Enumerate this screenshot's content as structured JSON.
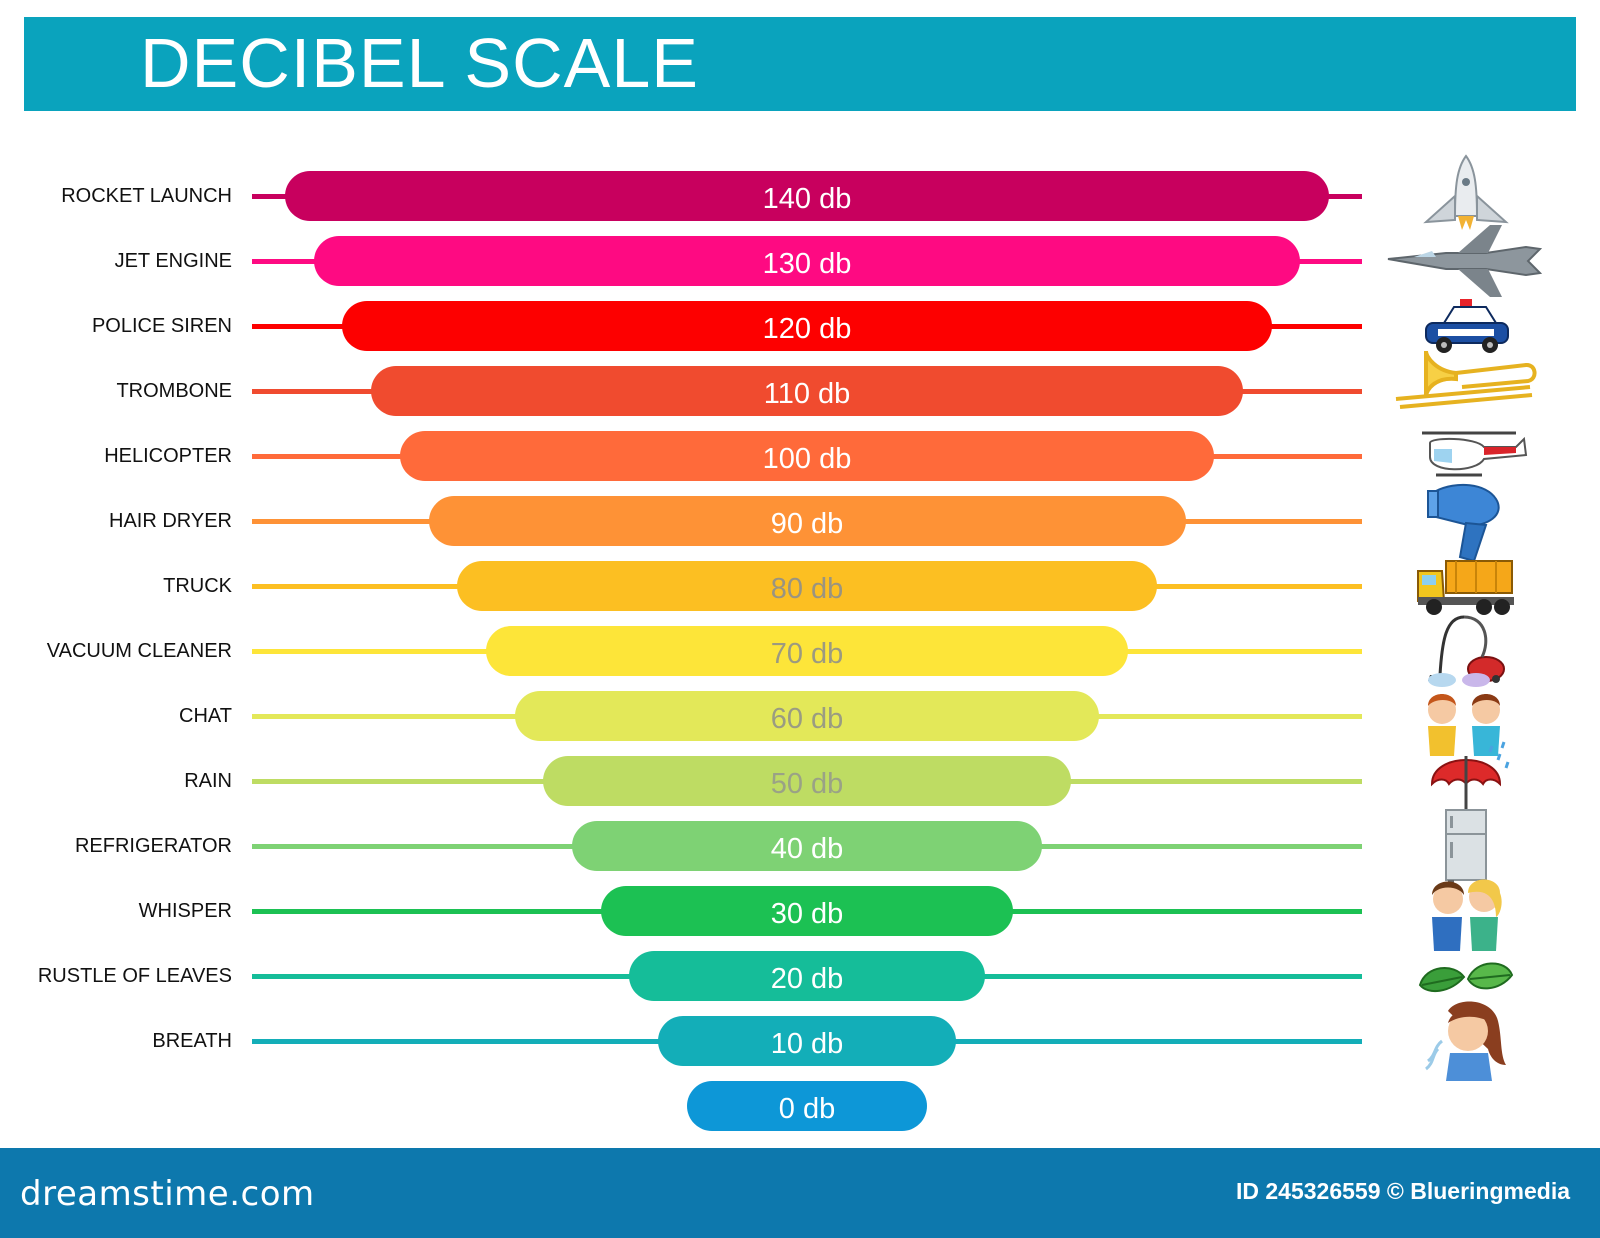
{
  "header": {
    "title": "DECIBEL SCALE"
  },
  "scale": {
    "levels": [
      {
        "label": "ROCKET LAUNCH",
        "value": "140 db",
        "db": 140,
        "color": "#c8005e",
        "text_color": "#ffffff",
        "icon": "rocket-icon"
      },
      {
        "label": "JET ENGINE",
        "value": "130 db",
        "db": 130,
        "color": "#fe0a82",
        "text_color": "#ffffff",
        "icon": "jet-fighter-icon"
      },
      {
        "label": "POLICE SIREN",
        "value": "120 db",
        "db": 120,
        "color": "#fd0000",
        "text_color": "#ffffff",
        "icon": "police-car-icon"
      },
      {
        "label": "TROMBONE",
        "value": "110 db",
        "db": 110,
        "color": "#f04b2f",
        "text_color": "#ffffff",
        "icon": "trombone-icon"
      },
      {
        "label": "HELICOPTER",
        "value": "100 db",
        "db": 100,
        "color": "#ff6a3a",
        "text_color": "#ffffff",
        "icon": "helicopter-icon"
      },
      {
        "label": "HAIR DRYER",
        "value": "90 db",
        "db": 90,
        "color": "#fe9236",
        "text_color": "#ffffff",
        "icon": "hair-dryer-icon"
      },
      {
        "label": "TRUCK",
        "value": "80 db",
        "db": 80,
        "color": "#fcbf22",
        "text_color": "#9a9480",
        "icon": "dump-truck-icon"
      },
      {
        "label": "VACUUM CLEANER",
        "value": "70 db",
        "db": 70,
        "color": "#fde539",
        "text_color": "#9c9a80",
        "icon": "vacuum-cleaner-icon"
      },
      {
        "label": "CHAT",
        "value": "60 db",
        "db": 60,
        "color": "#e3e859",
        "text_color": "#9a9c82",
        "icon": "chatting-kids-icon"
      },
      {
        "label": "RAIN",
        "value": "50 db",
        "db": 50,
        "color": "#bedc63",
        "text_color": "#9aa286",
        "icon": "umbrella-rain-icon"
      },
      {
        "label": "REFRIGERATOR",
        "value": "40 db",
        "db": 40,
        "color": "#7ed274",
        "text_color": "#ffffff",
        "icon": "refrigerator-icon"
      },
      {
        "label": "WHISPER",
        "value": "30 db",
        "db": 30,
        "color": "#1cc153",
        "text_color": "#ffffff",
        "icon": "whispering-kids-icon"
      },
      {
        "label": "RUSTLE OF LEAVES",
        "value": "20 db",
        "db": 20,
        "color": "#15bd99",
        "text_color": "#ffffff",
        "icon": "leaves-icon"
      },
      {
        "label": "BREATH",
        "value": "10 db",
        "db": 10,
        "color": "#13aeb8",
        "text_color": "#ffffff",
        "icon": "breathing-girl-icon"
      },
      {
        "label": "",
        "value": "0 db",
        "db": 0,
        "color": "#0d97d7",
        "text_color": "#ffffff",
        "icon": ""
      }
    ]
  },
  "footer": {
    "brand": "dreamstime.com",
    "credit": "ID 245326559 © Blueringmedia"
  }
}
